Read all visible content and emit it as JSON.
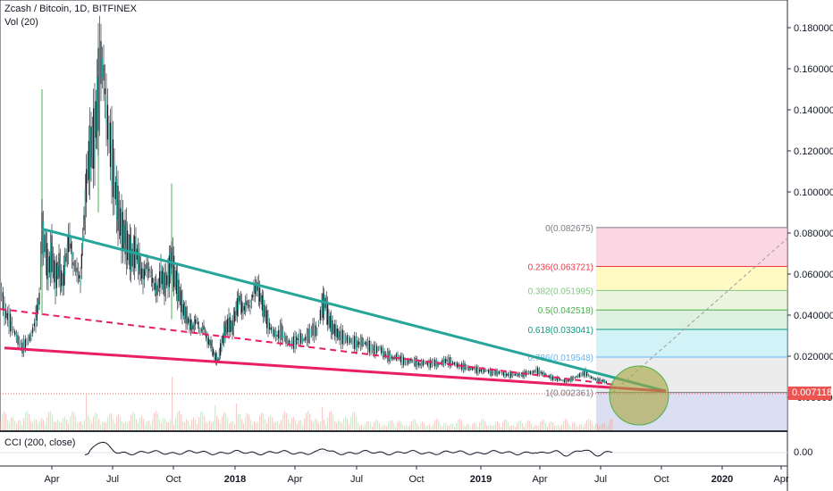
{
  "header": {
    "symbol_title": "Zcash / Bitcoin, 1D, BITFINEX",
    "volume_label": "Vol (20)"
  },
  "cci_panel": {
    "label": "CCI (200, close)",
    "axis_value": "0.00"
  },
  "last_price": "0.007118",
  "colors": {
    "teal_trendline": "#26a69a",
    "red_trendline": "#e91e63",
    "price_marker": "#ef5350",
    "circle_fill": "#a6a33a"
  },
  "chart_data": {
    "type": "candlestick",
    "y_axis": {
      "ticks": [
        "0.180000",
        "0.160000",
        "0.140000",
        "0.120000",
        "0.100000",
        "0.080000",
        "0.060000",
        "0.040000",
        "0.020000",
        "-0.000000"
      ],
      "range": [
        -0.01,
        0.19
      ]
    },
    "x_axis": {
      "ticks": [
        "Apr",
        "Jul",
        "Oct",
        "2018",
        "Apr",
        "Jul",
        "Oct",
        "2019",
        "Apr",
        "Jul",
        "Oct",
        "2020",
        "Apr"
      ]
    },
    "fibonacci": [
      {
        "label": "0(0.082675)",
        "value": 0.082675,
        "color": "#787b86"
      },
      {
        "label": "0.236(0.063721)",
        "value": 0.063721,
        "color": "#f23645"
      },
      {
        "label": "0.382(0.051995)",
        "value": 0.051995,
        "color": "#81c784"
      },
      {
        "label": "0.5(0.042518)",
        "value": 0.042518,
        "color": "#4caf50"
      },
      {
        "label": "0.618(0.033041)",
        "value": 0.033041,
        "color": "#089981"
      },
      {
        "label": "0.786(0.019548)",
        "value": 0.019548,
        "color": "#64b5f6"
      },
      {
        "label": "1(0.002361)",
        "value": 0.002361,
        "color": "#787b86"
      }
    ],
    "price_path": [
      [
        0,
        0.056
      ],
      [
        5,
        0.042
      ],
      [
        10,
        0.038
      ],
      [
        15,
        0.033
      ],
      [
        20,
        0.028
      ],
      [
        25,
        0.024
      ],
      [
        30,
        0.027
      ],
      [
        35,
        0.03
      ],
      [
        40,
        0.038
      ],
      [
        44,
        0.048
      ],
      [
        47,
        0.08
      ],
      [
        50,
        0.075
      ],
      [
        54,
        0.062
      ],
      [
        58,
        0.07
      ],
      [
        62,
        0.057
      ],
      [
        66,
        0.064
      ],
      [
        70,
        0.055
      ],
      [
        74,
        0.068
      ],
      [
        78,
        0.078
      ],
      [
        82,
        0.065
      ],
      [
        86,
        0.062
      ],
      [
        90,
        0.057
      ],
      [
        94,
        0.085
      ],
      [
        98,
        0.112
      ],
      [
        102,
        0.122
      ],
      [
        106,
        0.128
      ],
      [
        110,
        0.15
      ],
      [
        113,
        0.163
      ],
      [
        116,
        0.158
      ],
      [
        119,
        0.14
      ],
      [
        122,
        0.128
      ],
      [
        125,
        0.118
      ],
      [
        128,
        0.105
      ],
      [
        132,
        0.092
      ],
      [
        136,
        0.082
      ],
      [
        140,
        0.078
      ],
      [
        144,
        0.072
      ],
      [
        148,
        0.068
      ],
      [
        152,
        0.072
      ],
      [
        156,
        0.065
      ],
      [
        160,
        0.058
      ],
      [
        164,
        0.064
      ],
      [
        168,
        0.061
      ],
      [
        172,
        0.055
      ],
      [
        176,
        0.052
      ],
      [
        180,
        0.06
      ],
      [
        184,
        0.055
      ],
      [
        188,
        0.058
      ],
      [
        192,
        0.068
      ],
      [
        196,
        0.058
      ],
      [
        200,
        0.052
      ],
      [
        204,
        0.044
      ],
      [
        208,
        0.04
      ],
      [
        212,
        0.036
      ],
      [
        216,
        0.034
      ],
      [
        220,
        0.038
      ],
      [
        224,
        0.032
      ],
      [
        228,
        0.034
      ],
      [
        232,
        0.028
      ],
      [
        236,
        0.026
      ],
      [
        240,
        0.02
      ],
      [
        244,
        0.018
      ],
      [
        248,
        0.026
      ],
      [
        252,
        0.033
      ],
      [
        256,
        0.036
      ],
      [
        260,
        0.034
      ],
      [
        264,
        0.042
      ],
      [
        268,
        0.048
      ],
      [
        272,
        0.042
      ],
      [
        276,
        0.046
      ],
      [
        280,
        0.044
      ],
      [
        284,
        0.052
      ],
      [
        288,
        0.054
      ],
      [
        292,
        0.048
      ],
      [
        296,
        0.042
      ],
      [
        300,
        0.036
      ],
      [
        305,
        0.032
      ],
      [
        310,
        0.03
      ],
      [
        315,
        0.032
      ],
      [
        320,
        0.028
      ],
      [
        325,
        0.026
      ],
      [
        330,
        0.027
      ],
      [
        335,
        0.029
      ],
      [
        340,
        0.028
      ],
      [
        345,
        0.03
      ],
      [
        350,
        0.033
      ],
      [
        355,
        0.032
      ],
      [
        360,
        0.044
      ],
      [
        364,
        0.046
      ],
      [
        368,
        0.038
      ],
      [
        372,
        0.034
      ],
      [
        376,
        0.032
      ],
      [
        380,
        0.03
      ],
      [
        385,
        0.029
      ],
      [
        390,
        0.028
      ],
      [
        395,
        0.027
      ],
      [
        400,
        0.026
      ],
      [
        405,
        0.027
      ],
      [
        410,
        0.026
      ],
      [
        415,
        0.024
      ],
      [
        420,
        0.023
      ],
      [
        425,
        0.024
      ],
      [
        430,
        0.021
      ],
      [
        435,
        0.02
      ],
      [
        440,
        0.019
      ],
      [
        445,
        0.02
      ],
      [
        450,
        0.018
      ],
      [
        455,
        0.017
      ],
      [
        460,
        0.018
      ],
      [
        465,
        0.017
      ],
      [
        470,
        0.016
      ],
      [
        475,
        0.017
      ],
      [
        480,
        0.016
      ],
      [
        485,
        0.017
      ],
      [
        490,
        0.016
      ],
      [
        495,
        0.017
      ],
      [
        500,
        0.018
      ],
      [
        505,
        0.017
      ],
      [
        510,
        0.016
      ],
      [
        515,
        0.015
      ],
      [
        520,
        0.015
      ],
      [
        525,
        0.014
      ],
      [
        530,
        0.014
      ],
      [
        535,
        0.013
      ],
      [
        540,
        0.013
      ],
      [
        545,
        0.013
      ],
      [
        550,
        0.012
      ],
      [
        555,
        0.012
      ],
      [
        560,
        0.012
      ],
      [
        565,
        0.011
      ],
      [
        570,
        0.011
      ],
      [
        575,
        0.011
      ],
      [
        580,
        0.011
      ],
      [
        585,
        0.011
      ],
      [
        590,
        0.012
      ],
      [
        595,
        0.012
      ],
      [
        600,
        0.013
      ],
      [
        605,
        0.012
      ],
      [
        610,
        0.011
      ],
      [
        615,
        0.01
      ],
      [
        620,
        0.009
      ],
      [
        625,
        0.009
      ],
      [
        630,
        0.008
      ],
      [
        635,
        0.008
      ],
      [
        640,
        0.009
      ],
      [
        645,
        0.01
      ],
      [
        650,
        0.011
      ],
      [
        655,
        0.012
      ],
      [
        660,
        0.01
      ],
      [
        665,
        0.009
      ],
      [
        670,
        0.008
      ],
      [
        675,
        0.008
      ],
      [
        680,
        0.007
      ]
    ],
    "trendlines": [
      {
        "name": "",
        "color": "#26a69a",
        "style": "solid",
        "from": [
          47,
          0.082
        ],
        "to": [
          745,
          0.003
        ]
      },
      {
        "name": "",
        "color": "#e91e63",
        "style": "dashed",
        "from": [
          0,
          0.043
        ],
        "to": [
          690,
          0.006
        ]
      },
      {
        "name": "",
        "color": "#e91e63",
        "style": "solid",
        "from": [
          5,
          0.024
        ],
        "to": [
          745,
          0.003
        ]
      }
    ]
  }
}
